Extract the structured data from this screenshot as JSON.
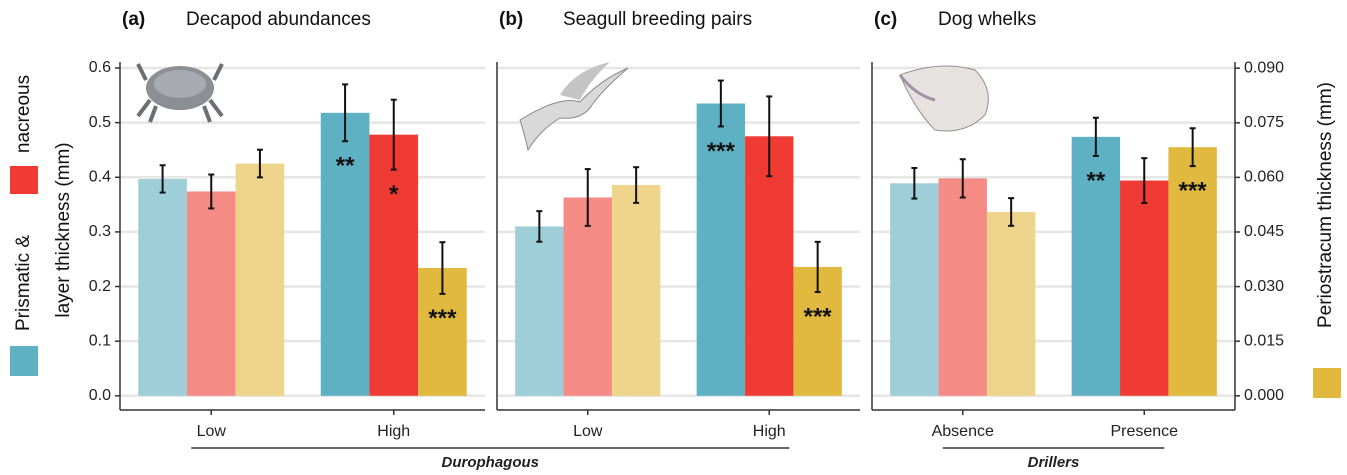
{
  "chart_data": [
    {
      "type": "bar",
      "panel": "(a)",
      "title": "Decapod abundances",
      "categories": [
        "Low",
        "High"
      ],
      "ylim": [
        -0.026,
        0.611
      ],
      "y2lim": [
        -0.0039,
        0.0917
      ],
      "yticks": [
        {
          "value": 0,
          "label": "0.0"
        },
        0.1,
        0.2,
        0.3,
        0.4,
        0.5,
        0.6
      ],
      "ylabel": [
        "Prismatic &",
        "nacreous",
        "layer thickness (mm)"
      ],
      "grid": true,
      "series": [
        {
          "colors": [
            "#9ecfd9",
            "#5eb0c3"
          ],
          "values": [
            0.397,
            0.518
          ],
          "errors": [
            0.025,
            0.052
          ],
          "annotations": [
            null,
            "**"
          ]
        },
        {
          "colors": [
            "#f58b85",
            "#ef3b33"
          ],
          "values": [
            0.374,
            0.478
          ],
          "errors": [
            0.031,
            0.064
          ],
          "annotations": [
            null,
            "*"
          ]
        },
        {
          "colors": [
            "#efd48b",
            "#e2b93f"
          ],
          "axis": "y2",
          "values": [
            0.0638,
            0.0351
          ],
          "errors": [
            0.0038,
            0.0071
          ],
          "annotations": [
            null,
            "***"
          ]
        }
      ]
    },
    {
      "type": "bar",
      "panel": "(b)",
      "title": "Seagull breeding pairs",
      "categories": [
        "Low",
        "High"
      ],
      "ylim": [
        -0.026,
        0.611
      ],
      "y2lim": [
        -0.0039,
        0.0917
      ],
      "grid": true,
      "series": [
        {
          "colors": [
            "#9ecfd9",
            "#5eb0c3"
          ],
          "values": [
            0.31,
            0.535
          ],
          "errors": [
            0.028,
            0.042
          ],
          "annotations": [
            null,
            "***"
          ]
        },
        {
          "colors": [
            "#f58b85",
            "#ef3b33"
          ],
          "values": [
            0.363,
            0.475
          ],
          "errors": [
            0.052,
            0.073
          ],
          "annotations": [
            null,
            null
          ]
        },
        {
          "colors": [
            "#efd48b",
            "#e2b93f"
          ],
          "axis": "y2",
          "values": [
            0.0579,
            0.0354
          ],
          "errors": [
            0.0049,
            0.0069
          ],
          "annotations": [
            null,
            "***"
          ]
        }
      ]
    },
    {
      "type": "bar",
      "panel": "(c)",
      "title": "Dog whelks",
      "categories": [
        "Absence",
        "Presence"
      ],
      "ylim": [
        -0.026,
        0.611
      ],
      "y2lim": [
        -0.0039,
        0.0917
      ],
      "y2ticks": [
        {
          "value": 0,
          "label": "0.000"
        },
        0.015,
        {
          "value": 0.03,
          "label": "0.030"
        },
        0.045,
        {
          "value": 0.06,
          "label": "0.060"
        },
        0.075,
        {
          "value": 0.09,
          "label": "0.090"
        }
      ],
      "y2label": "Periostracum  thickness (mm)",
      "grid": true,
      "series": [
        {
          "colors": [
            "#9ecfd9",
            "#5eb0c3"
          ],
          "values": [
            0.389,
            0.474
          ],
          "errors": [
            0.028,
            0.035
          ],
          "annotations": [
            null,
            "**"
          ]
        },
        {
          "colors": [
            "#f58b85",
            "#ef3b33"
          ],
          "values": [
            0.398,
            0.394
          ],
          "errors": [
            0.035,
            0.041
          ],
          "annotations": [
            null,
            null
          ]
        },
        {
          "colors": [
            "#efd48b",
            "#e2b93f"
          ],
          "axis": "y2",
          "values": [
            0.0505,
            0.0683
          ],
          "errors": [
            0.0038,
            0.0052
          ],
          "annotations": [
            null,
            "***"
          ]
        }
      ]
    }
  ],
  "groups": [
    {
      "label": "Durophagous",
      "charts": [
        0,
        1
      ]
    },
    {
      "label": "Drillers",
      "charts": [
        2
      ]
    }
  ]
}
